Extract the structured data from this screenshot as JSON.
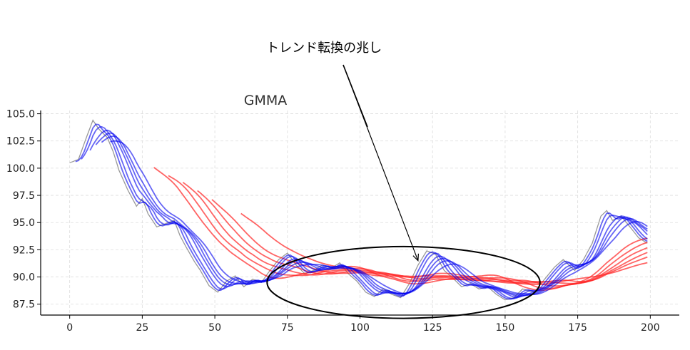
{
  "chart_data": {
    "type": "line",
    "title": "GMMA",
    "xlabel": "",
    "ylabel": "",
    "xlim": [
      -10,
      210
    ],
    "ylim": [
      86.5,
      105.3
    ],
    "grid": true,
    "x_ticks": [
      0,
      25,
      50,
      75,
      100,
      125,
      150,
      175,
      200
    ],
    "y_ticks": [
      87.5,
      90.0,
      92.5,
      95.0,
      97.5,
      100.0,
      102.5,
      105.0
    ],
    "price": {
      "color": "#999999",
      "keypoints": [
        [
          0,
          100.5
        ],
        [
          3,
          100.8
        ],
        [
          6,
          103
        ],
        [
          8,
          104.4
        ],
        [
          10,
          103.6
        ],
        [
          13,
          102.8
        ],
        [
          15,
          101.5
        ],
        [
          17,
          99.8
        ],
        [
          20,
          98
        ],
        [
          23,
          96.5
        ],
        [
          25,
          97.2
        ],
        [
          27,
          95.8
        ],
        [
          30,
          94.6
        ],
        [
          33,
          94.9
        ],
        [
          36,
          95.2
        ],
        [
          38,
          93.8
        ],
        [
          40,
          92.8
        ],
        [
          43,
          91.4
        ],
        [
          45,
          90.6
        ],
        [
          48,
          89.2
        ],
        [
          51,
          88.6
        ],
        [
          54,
          89.6
        ],
        [
          57,
          90.1
        ],
        [
          60,
          89.1
        ],
        [
          63,
          89.8
        ],
        [
          66,
          89.5
        ],
        [
          69,
          90.6
        ],
        [
          72,
          91.6
        ],
        [
          75,
          92.2
        ],
        [
          78,
          91.1
        ],
        [
          81,
          90.3
        ],
        [
          84,
          90.6
        ],
        [
          87,
          91.1
        ],
        [
          90,
          90.8
        ],
        [
          93,
          91.3
        ],
        [
          96,
          90.3
        ],
        [
          99,
          89.6
        ],
        [
          102,
          88.6
        ],
        [
          105,
          88.2
        ],
        [
          108,
          88.9
        ],
        [
          111,
          88.4
        ],
        [
          114,
          88.1
        ],
        [
          117,
          89.4
        ],
        [
          120,
          91.1
        ],
        [
          123,
          92.4
        ],
        [
          126,
          92.1
        ],
        [
          129,
          90.6
        ],
        [
          132,
          89.9
        ],
        [
          135,
          89.1
        ],
        [
          138,
          89.4
        ],
        [
          141,
          88.9
        ],
        [
          144,
          89.1
        ],
        [
          147,
          88.4
        ],
        [
          150,
          87.9
        ],
        [
          153,
          88.1
        ],
        [
          156,
          88.9
        ],
        [
          160,
          88.6
        ],
        [
          163,
          89.6
        ],
        [
          167,
          90.9
        ],
        [
          170,
          91.6
        ],
        [
          174,
          90.6
        ],
        [
          177,
          91.6
        ],
        [
          180,
          93.1
        ],
        [
          183,
          95.6
        ],
        [
          185,
          96.1
        ],
        [
          187,
          95.2
        ],
        [
          190,
          95.6
        ],
        [
          193,
          94.6
        ],
        [
          196,
          93.6
        ],
        [
          199,
          93.1
        ]
      ]
    },
    "short_ma": {
      "color": "#0000ee",
      "periods": [
        3,
        5,
        8,
        10,
        12,
        15
      ]
    },
    "long_ma": {
      "color": "#ff2222",
      "periods": [
        30,
        35,
        40,
        45,
        50,
        60
      ]
    },
    "annotation": {
      "text": "トレンド転換の兆し",
      "xy": [
        120,
        91.5
      ],
      "xytext": [
        95,
        108.2
      ],
      "ellipse": {
        "cx": 115,
        "cy": 89.5,
        "rx": 47,
        "ry": 3.3
      }
    }
  }
}
